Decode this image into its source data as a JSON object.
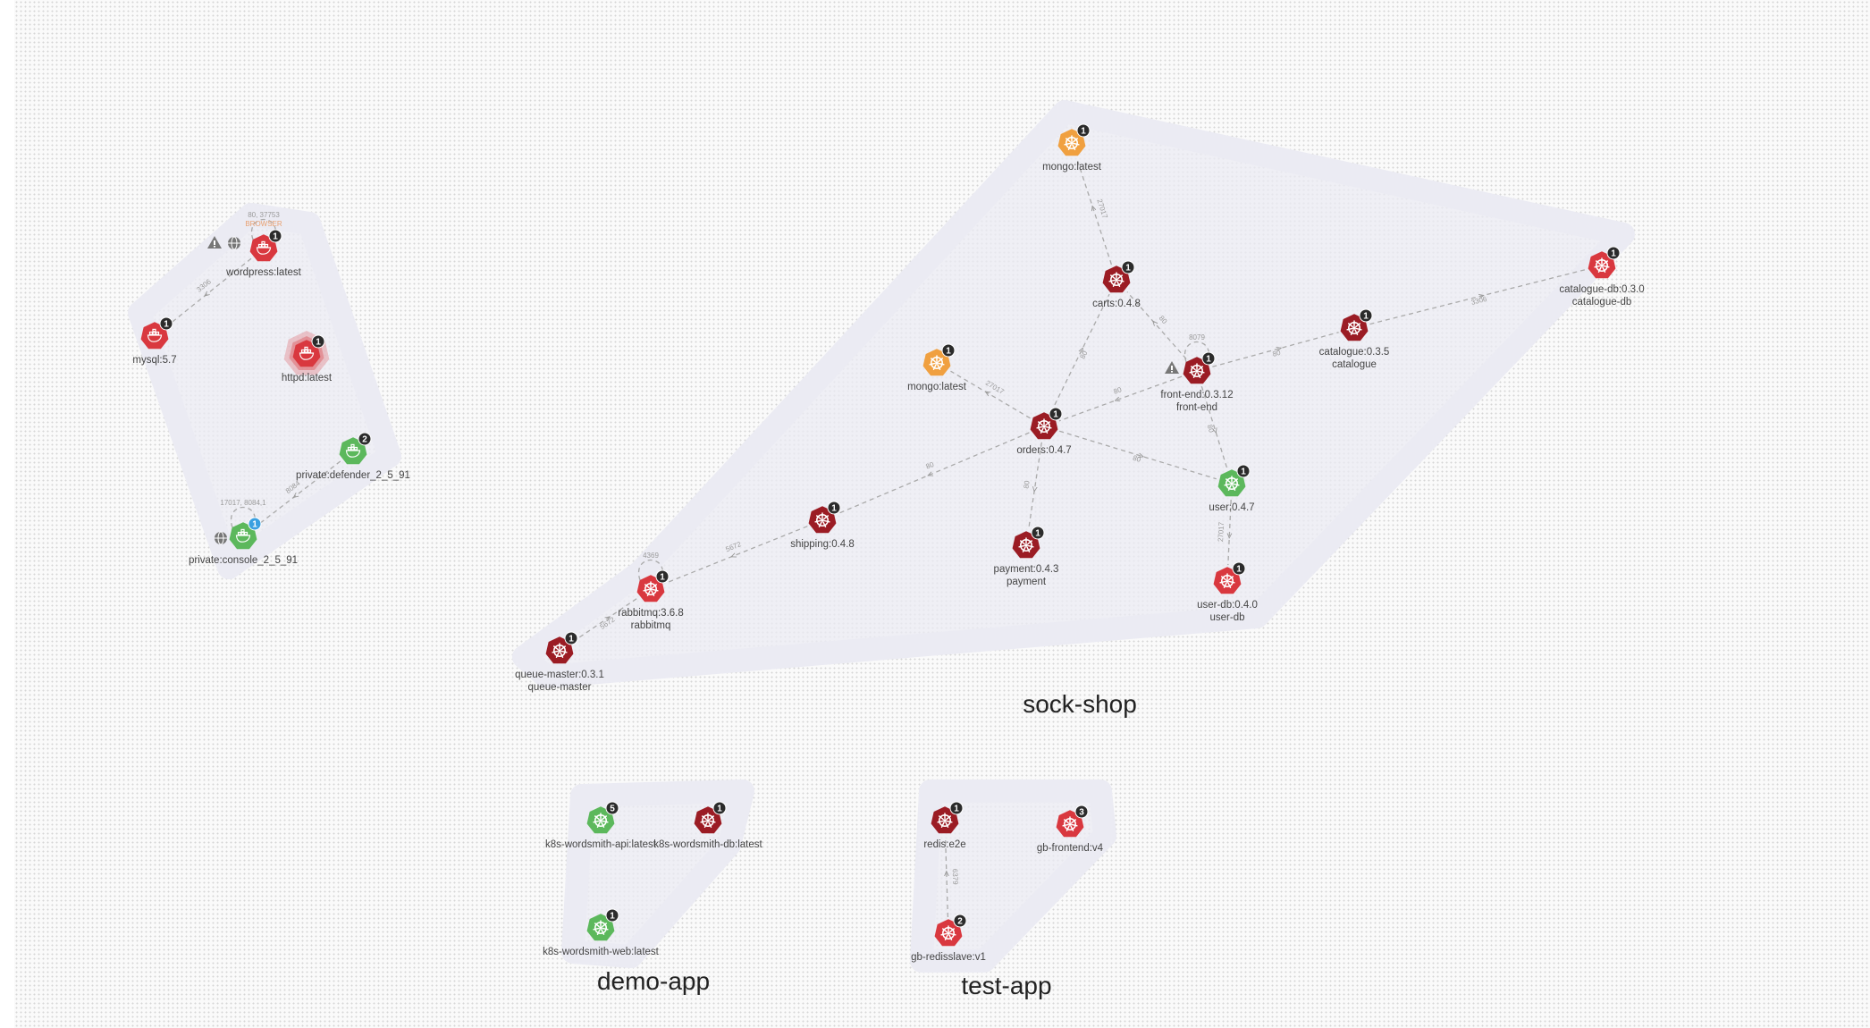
{
  "colors": {
    "red": "#d9383f",
    "darkred": "#9b1c24",
    "green": "#5cb85c",
    "orange": "#f0a040",
    "badge": "#2b2b2b",
    "badge_blue": "#3aa0e0",
    "group_fill": "#ebebf3"
  },
  "groups": [
    {
      "id": "g-wordpress",
      "label": ""
    },
    {
      "id": "g-sock",
      "label": "sock-shop"
    },
    {
      "id": "g-demo",
      "label": "demo-app"
    },
    {
      "id": "g-test",
      "label": "test-app"
    }
  ],
  "nodes": [
    {
      "id": "wordpress",
      "lines": [
        "wordpress:latest"
      ],
      "color": "red",
      "badge": "1",
      "icon": "docker-icon"
    },
    {
      "id": "mysql",
      "lines": [
        "mysql:5.7"
      ],
      "color": "red",
      "badge": "1",
      "icon": "docker-icon"
    },
    {
      "id": "httpd",
      "lines": [
        "httpd:latest"
      ],
      "color": "red",
      "badge": "1",
      "icon": "docker-icon"
    },
    {
      "id": "defender",
      "lines": [
        "private:defender_2_5_91"
      ],
      "color": "green",
      "badge": "2",
      "icon": "docker-icon"
    },
    {
      "id": "console",
      "lines": [
        "private:console_2_5_91"
      ],
      "color": "green",
      "badge": "1",
      "badgeColor": "badge_blue",
      "icon": "docker-icon"
    },
    {
      "id": "mongo-top",
      "lines": [
        "mongo:latest"
      ],
      "color": "orange",
      "badge": "1",
      "icon": "kubernetes-icon"
    },
    {
      "id": "carts",
      "lines": [
        "carts:0.4.8"
      ],
      "color": "darkred",
      "badge": "1",
      "icon": "kubernetes-icon"
    },
    {
      "id": "catalogue-db",
      "lines": [
        "catalogue-db:0.3.0",
        "catalogue-db"
      ],
      "color": "red",
      "badge": "1",
      "icon": "kubernetes-icon"
    },
    {
      "id": "catalogue",
      "lines": [
        "catalogue:0.3.5",
        "catalogue"
      ],
      "color": "darkred",
      "badge": "1",
      "icon": "kubernetes-icon"
    },
    {
      "id": "front-end",
      "lines": [
        "front-end:0.3.12",
        "front-end"
      ],
      "color": "darkred",
      "badge": "1",
      "icon": "kubernetes-icon"
    },
    {
      "id": "mongo-mid",
      "lines": [
        "mongo:latest"
      ],
      "color": "orange",
      "badge": "1",
      "icon": "kubernetes-icon"
    },
    {
      "id": "orders",
      "lines": [
        "orders:0.4.7"
      ],
      "color": "darkred",
      "badge": "1",
      "icon": "kubernetes-icon"
    },
    {
      "id": "user",
      "lines": [
        "user:0.4.7"
      ],
      "color": "green",
      "badge": "1",
      "icon": "kubernetes-icon"
    },
    {
      "id": "shipping",
      "lines": [
        "shipping:0.4.8"
      ],
      "color": "darkred",
      "badge": "1",
      "icon": "kubernetes-icon"
    },
    {
      "id": "payment",
      "lines": [
        "payment:0.4.3",
        "payment"
      ],
      "color": "darkred",
      "badge": "1",
      "icon": "kubernetes-icon"
    },
    {
      "id": "user-db",
      "lines": [
        "user-db:0.4.0",
        "user-db"
      ],
      "color": "red",
      "badge": "1",
      "icon": "kubernetes-icon"
    },
    {
      "id": "rabbitmq",
      "lines": [
        "rabbitmq:3.6.8",
        "rabbitmq"
      ],
      "color": "red",
      "badge": "1",
      "icon": "kubernetes-icon"
    },
    {
      "id": "queue-master",
      "lines": [
        "queue-master:0.3.1",
        "queue-master"
      ],
      "color": "darkred",
      "badge": "1",
      "icon": "kubernetes-icon"
    },
    {
      "id": "wordsmith-api",
      "lines": [
        "k8s-wordsmith-api:latest"
      ],
      "color": "green",
      "badge": "5",
      "icon": "kubernetes-icon"
    },
    {
      "id": "wordsmith-db",
      "lines": [
        "k8s-wordsmith-db:latest"
      ],
      "color": "darkred",
      "badge": "1",
      "icon": "kubernetes-icon"
    },
    {
      "id": "wordsmith-web",
      "lines": [
        "k8s-wordsmith-web:latest"
      ],
      "color": "green",
      "badge": "1",
      "icon": "kubernetes-icon"
    },
    {
      "id": "redis",
      "lines": [
        "redis:e2e"
      ],
      "color": "darkred",
      "badge": "1",
      "icon": "kubernetes-icon"
    },
    {
      "id": "gb-frontend",
      "lines": [
        "gb-frontend:v4"
      ],
      "color": "red",
      "badge": "3",
      "icon": "kubernetes-icon"
    },
    {
      "id": "gb-redisslave",
      "lines": [
        "gb-redisslave:v1"
      ],
      "color": "red",
      "badge": "2",
      "icon": "kubernetes-icon"
    }
  ],
  "edges": [
    {
      "from": "wordpress",
      "to": "mysql",
      "port": "3306"
    },
    {
      "from": "defender",
      "to": "console",
      "port": "8084"
    },
    {
      "from": "carts",
      "to": "mongo-top",
      "port": "27017"
    },
    {
      "from": "front-end",
      "to": "carts",
      "port": "80"
    },
    {
      "from": "orders",
      "to": "carts",
      "port": "80"
    },
    {
      "from": "catalogue",
      "to": "catalogue-db",
      "port": "3306"
    },
    {
      "from": "front-end",
      "to": "catalogue",
      "port": "80"
    },
    {
      "from": "front-end",
      "to": "orders",
      "port": "80"
    },
    {
      "from": "orders",
      "to": "mongo-mid",
      "port": "27017"
    },
    {
      "from": "front-end",
      "to": "user",
      "port": "80"
    },
    {
      "from": "orders",
      "to": "user",
      "port": "80"
    },
    {
      "from": "orders",
      "to": "shipping",
      "port": "80"
    },
    {
      "from": "orders",
      "to": "payment",
      "port": "80"
    },
    {
      "from": "user",
      "to": "user-db",
      "port": "27017"
    },
    {
      "from": "shipping",
      "to": "rabbitmq",
      "port": "5672"
    },
    {
      "from": "queue-master",
      "to": "rabbitmq",
      "port": "5672"
    },
    {
      "from": "gb-redisslave",
      "to": "redis",
      "port": "6379"
    }
  ],
  "self_loops": [
    {
      "node": "wordpress",
      "port": "80, 37753",
      "extra": "BROWSER"
    },
    {
      "node": "front-end",
      "port": "8079"
    },
    {
      "node": "rabbitmq",
      "port": "4369"
    },
    {
      "node": "console",
      "port": "17017, 8084,1"
    }
  ],
  "side_icons": [
    {
      "node": "wordpress",
      "icons": [
        "warning-icon",
        "globe-icon"
      ]
    },
    {
      "node": "front-end",
      "icons": [
        "warning-icon"
      ]
    },
    {
      "node": "console",
      "icons": [
        "globe-icon"
      ]
    }
  ]
}
